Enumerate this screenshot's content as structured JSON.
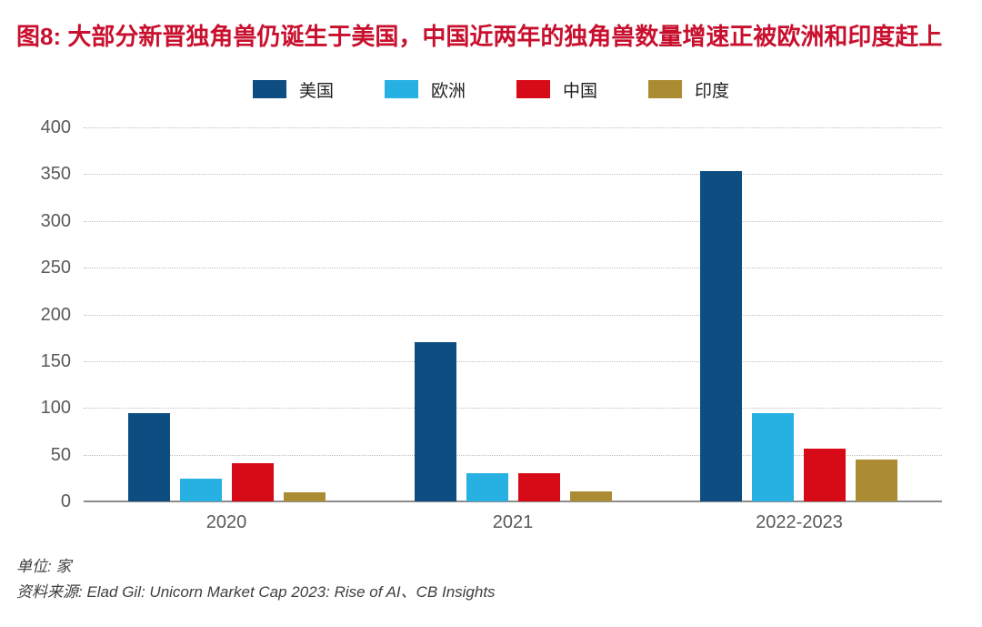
{
  "title": "图8: 大部分新晋独角兽仍诞生于美国，中国近两年的独角兽数量增速正被欧洲和印度赶上",
  "colors": {
    "title": "#c8102e",
    "axis": "#8c8c8c",
    "gridline": "#bfbfbf",
    "tick_text": "#595959",
    "legend_text": "#1f1f1f",
    "footer_text": "#404040",
    "us_blue": "#0e4d82",
    "europe_cyan": "#27b0e2",
    "china_red": "#d60b17",
    "india_gold": "#ac8c33"
  },
  "chart_data": {
    "type": "bar",
    "categories": [
      "2020",
      "2021",
      "2022-2023"
    ],
    "series": [
      {
        "name": "美国",
        "color": "#0e4d82",
        "values": [
          94,
          170,
          353
        ]
      },
      {
        "name": "欧洲",
        "color": "#27b0e2",
        "values": [
          24,
          30,
          94
        ]
      },
      {
        "name": "中国",
        "color": "#d60b17",
        "values": [
          41,
          30,
          56
        ]
      },
      {
        "name": "印度",
        "color": "#ac8c33",
        "values": [
          10,
          11,
          45
        ]
      }
    ],
    "title": "图8: 大部分新晋独角兽仍诞生于美国，中国近两年的独角兽数量增速正被欧洲和印度赶上",
    "xlabel": "",
    "ylabel": "",
    "ylim": [
      0,
      400
    ],
    "ytick_step": 50,
    "grid": "horizontal-dotted",
    "legend_position": "top-center"
  },
  "footer": {
    "unit": "单位: 家",
    "source": "资料来源: Elad Gil: Unicorn Market Cap 2023: Rise of AI、CB Insights"
  }
}
